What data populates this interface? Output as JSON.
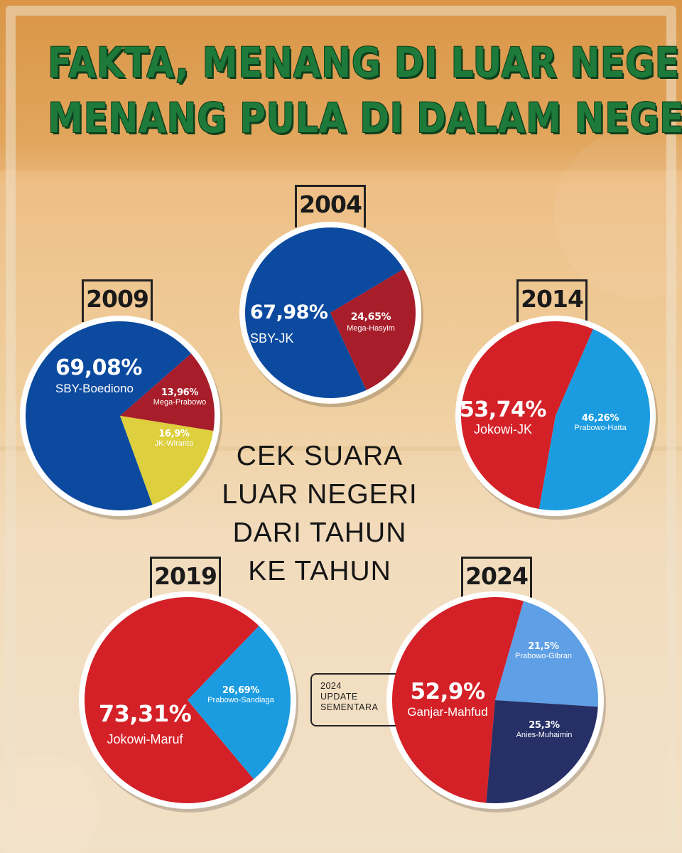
{
  "headline": {
    "line1": "FAKTA, MENANG DI LUAR NEGERI",
    "line2": "MENANG PULA DI DALAM NEGERI"
  },
  "center_text": "CEK SUARA\nLUAR NEGERI\nDARI TAHUN\nKE TAHUN",
  "update_note": "2024\nUPDATE\nSEMENTARA",
  "colors": {
    "headline": "#1d7a3a",
    "sby_blue": "#0c4aa0",
    "mega_maroon": "#a81d2a",
    "jk_wiranto_yellow": "#ddcf3d",
    "jokowi_red": "#d42027",
    "prabowo_lightblue": "#1b9ce0",
    "prabowo_gibran_blue": "#5e9fe6",
    "anies_navy": "#262f66",
    "ganjar_red": "#d42027"
  },
  "chart_data": [
    {
      "type": "pie",
      "title": "2004",
      "slices": [
        {
          "label": "SBY-JK",
          "value": 67.98,
          "display": "67,98%",
          "color": "#0c4aa0"
        },
        {
          "label": "Mega-Hasyim",
          "value": 24.65,
          "display": "24,65%",
          "color": "#a81d2a"
        }
      ]
    },
    {
      "type": "pie",
      "title": "2009",
      "slices": [
        {
          "label": "SBY-Boediono",
          "value": 69.08,
          "display": "69,08%",
          "color": "#0c4aa0"
        },
        {
          "label": "Mega-Prabowo",
          "value": 13.96,
          "display": "13,96%",
          "color": "#a81d2a"
        },
        {
          "label": "JK-Wiranto",
          "value": 16.9,
          "display": "16,9%",
          "color": "#ddcf3d"
        }
      ]
    },
    {
      "type": "pie",
      "title": "2014",
      "slices": [
        {
          "label": "Jokowi-JK",
          "value": 53.74,
          "display": "53,74%",
          "color": "#d42027"
        },
        {
          "label": "Prabowo-Hatta",
          "value": 46.26,
          "display": "46,26%",
          "color": "#1b9ce0"
        }
      ]
    },
    {
      "type": "pie",
      "title": "2019",
      "slices": [
        {
          "label": "Jokowi-Maruf",
          "value": 73.31,
          "display": "73,31%",
          "color": "#d42027"
        },
        {
          "label": "Prabowo-Sandiaga",
          "value": 26.69,
          "display": "26,69%",
          "color": "#1b9ce0"
        }
      ]
    },
    {
      "type": "pie",
      "title": "2024",
      "slices": [
        {
          "label": "Ganjar-Mahfud",
          "value": 52.9,
          "display": "52,9%",
          "color": "#d42027"
        },
        {
          "label": "Prabowo-Gibran",
          "value": 21.5,
          "display": "21,5%",
          "color": "#5e9fe6"
        },
        {
          "label": "Anies-Muhaimin",
          "value": 25.3,
          "display": "25,3%",
          "color": "#262f66"
        }
      ]
    }
  ]
}
